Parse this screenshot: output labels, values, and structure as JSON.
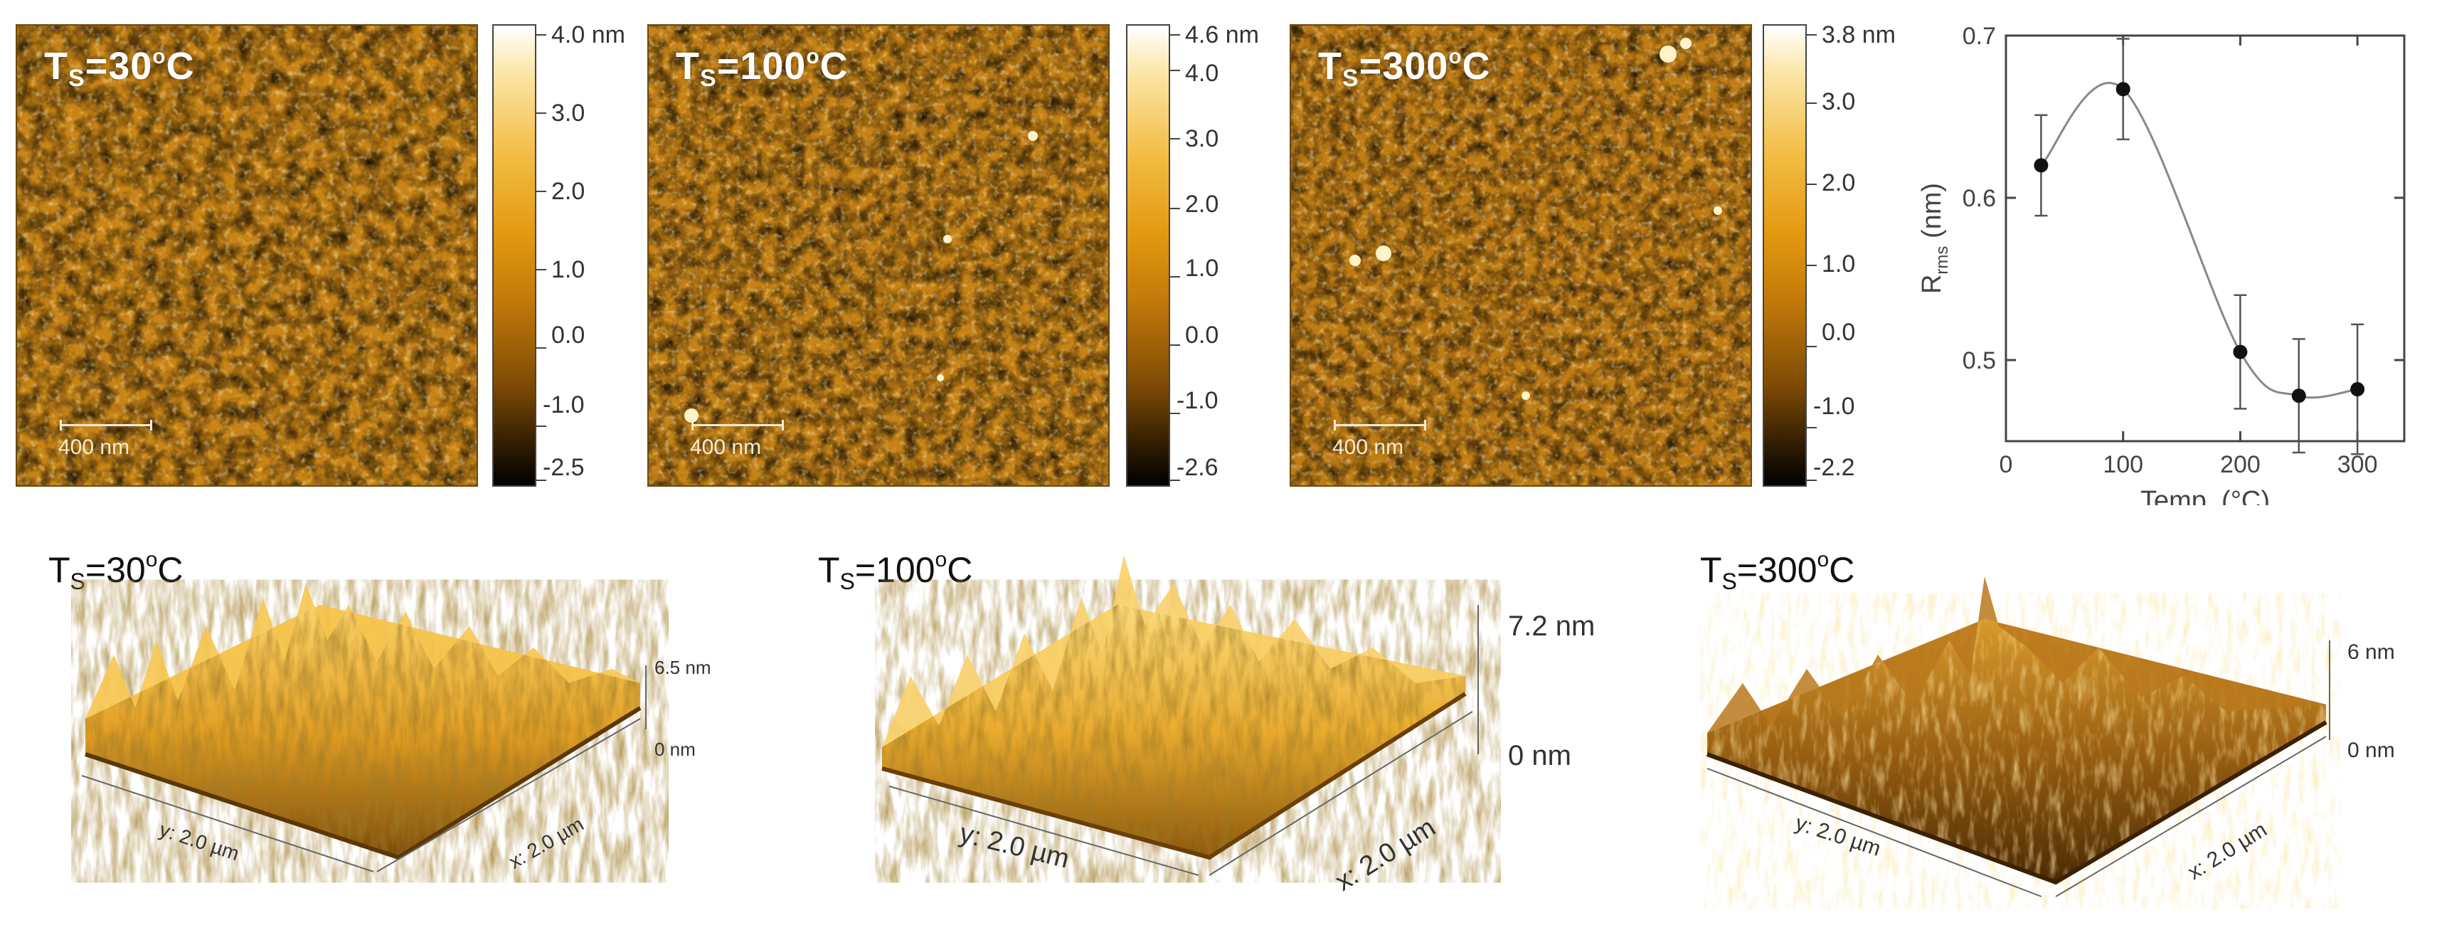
{
  "panels_2d": [
    {
      "label_main": "T",
      "label_sub": "S",
      "label_rest": "=30",
      "label_sup": "o",
      "label_unit": "C",
      "scalebar": "400 nm",
      "colorbar": {
        "top": "4.0 nm",
        "ticks": [
          "3.0",
          "2.0",
          "1.0",
          "0.0",
          "-1.0",
          "-2.5"
        ]
      }
    },
    {
      "label_main": "T",
      "label_sub": "S",
      "label_rest": "=100",
      "label_sup": "o",
      "label_unit": "C",
      "scalebar": "400 nm",
      "colorbar": {
        "top": "4.6 nm",
        "ticks": [
          "4.0",
          "3.0",
          "2.0",
          "1.0",
          "0.0",
          "-1.0",
          "-2.6"
        ]
      }
    },
    {
      "label_main": "T",
      "label_sub": "S",
      "label_rest": "=300",
      "label_sup": "o",
      "label_unit": "C",
      "scalebar": "400 nm",
      "colorbar": {
        "top": "3.8 nm",
        "ticks": [
          "3.0",
          "2.0",
          "1.0",
          "0.0",
          "-1.0",
          "-2.2"
        ]
      }
    }
  ],
  "panels_3d": [
    {
      "label_main": "T",
      "label_sub": "S",
      "label_rest": "=30",
      "label_sup": "o",
      "label_unit": "C",
      "z_max": "6.5 nm",
      "z_min": "0 nm",
      "y_axis": "y: 2.0 µm",
      "x_axis": "x: 2.0 µm"
    },
    {
      "label_main": "T",
      "label_sub": "S",
      "label_rest": "=100",
      "label_sup": "o",
      "label_unit": "C",
      "z_max": "7.2 nm",
      "z_min": "0 nm",
      "y_axis": "y: 2.0 µm",
      "x_axis": "x: 2.0 µm"
    },
    {
      "label_main": "T",
      "label_sub": "S",
      "label_rest": "=300",
      "label_sup": "o",
      "label_unit": "C",
      "z_max": "6 nm",
      "z_min": "0 nm",
      "y_axis": "y: 2.0 µm",
      "x_axis": "x: 2.0 µm"
    }
  ],
  "chart_data": {
    "type": "scatter",
    "x": [
      30,
      100,
      200,
      250,
      300
    ],
    "y": [
      0.62,
      0.667,
      0.505,
      0.478,
      0.482
    ],
    "yerr": [
      0.031,
      0.031,
      0.035,
      0.035,
      0.04
    ],
    "xlabel": "Temp. (°C)",
    "ylabel_main": "R",
    "ylabel_sub": "rms",
    "ylabel_unit": " (nm)",
    "xlim": [
      0,
      340
    ],
    "ylim": [
      0.45,
      0.7
    ],
    "xticks": [
      "0",
      "100",
      "200",
      "300"
    ],
    "yticks": [
      "0.5",
      "0.6",
      "0.7"
    ],
    "fit_curve": true,
    "grid": false
  },
  "colors": {
    "afm_base": "#c88416",
    "afm_light": "#f5c356",
    "afm_dark": "#4a2a04"
  }
}
